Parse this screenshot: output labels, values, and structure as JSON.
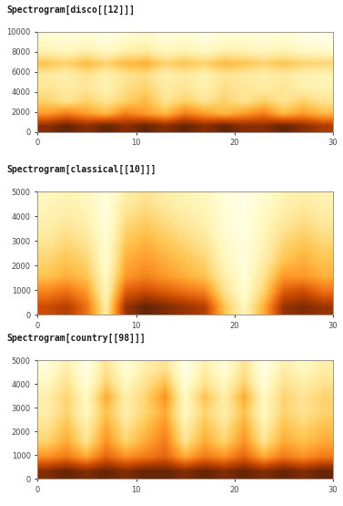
{
  "chart_data": [
    {
      "type": "heatmap",
      "title": "Spectrogram[disco[[12]]]",
      "xlim": [
        0,
        30
      ],
      "ylim": [
        0,
        10000
      ],
      "xticks": [
        0,
        10,
        20,
        30
      ],
      "yticks": [
        0,
        2000,
        4000,
        6000,
        8000,
        10000
      ],
      "cells": [
        [
          0.8,
          0.85,
          0.8,
          0.85,
          0.8,
          0.85,
          0.8,
          0.85,
          0.8,
          0.85,
          0.8,
          0.8,
          0.85,
          0.8,
          0.75
        ],
        [
          0.55,
          0.6,
          0.55,
          0.5,
          0.6,
          0.55,
          0.5,
          0.6,
          0.55,
          0.5,
          0.55,
          0.6,
          0.5,
          0.55,
          0.5
        ],
        [
          0.45,
          0.4,
          0.45,
          0.4,
          0.45,
          0.5,
          0.4,
          0.45,
          0.4,
          0.45,
          0.4,
          0.45,
          0.4,
          0.45,
          0.4
        ],
        [
          0.4,
          0.38,
          0.4,
          0.35,
          0.42,
          0.45,
          0.38,
          0.4,
          0.36,
          0.42,
          0.4,
          0.38,
          0.4,
          0.36,
          0.35
        ],
        [
          0.38,
          0.36,
          0.4,
          0.35,
          0.4,
          0.42,
          0.36,
          0.38,
          0.35,
          0.4,
          0.38,
          0.36,
          0.38,
          0.35,
          0.34
        ],
        [
          0.48,
          0.45,
          0.5,
          0.45,
          0.5,
          0.52,
          0.45,
          0.48,
          0.45,
          0.5,
          0.48,
          0.45,
          0.48,
          0.45,
          0.44
        ],
        [
          0.35,
          0.33,
          0.36,
          0.32,
          0.36,
          0.38,
          0.33,
          0.35,
          0.32,
          0.36,
          0.35,
          0.33,
          0.35,
          0.32,
          0.31
        ],
        [
          0.3,
          0.28,
          0.3,
          0.27,
          0.3,
          0.32,
          0.28,
          0.3,
          0.27,
          0.3,
          0.3,
          0.28,
          0.3,
          0.27,
          0.26
        ]
      ]
    },
    {
      "type": "heatmap",
      "title": "Spectrogram[classical[[10]]]",
      "xlim": [
        0,
        30
      ],
      "ylim": [
        0,
        5000
      ],
      "xticks": [
        0,
        10,
        20,
        30
      ],
      "yticks": [
        0,
        1000,
        2000,
        3000,
        4000,
        5000
      ],
      "cells": [
        [
          0.6,
          0.65,
          0.5,
          0.15,
          0.7,
          0.8,
          0.75,
          0.7,
          0.65,
          0.3,
          0.1,
          0.35,
          0.7,
          0.75,
          0.7
        ],
        [
          0.45,
          0.5,
          0.4,
          0.1,
          0.55,
          0.6,
          0.55,
          0.5,
          0.45,
          0.2,
          0.05,
          0.25,
          0.55,
          0.6,
          0.5
        ],
        [
          0.3,
          0.35,
          0.3,
          0.08,
          0.4,
          0.45,
          0.4,
          0.35,
          0.3,
          0.15,
          0.03,
          0.2,
          0.4,
          0.4,
          0.35
        ],
        [
          0.25,
          0.3,
          0.25,
          0.05,
          0.35,
          0.4,
          0.35,
          0.3,
          0.25,
          0.1,
          0.02,
          0.15,
          0.3,
          0.35,
          0.3
        ],
        [
          0.2,
          0.25,
          0.2,
          0.05,
          0.3,
          0.35,
          0.3,
          0.25,
          0.2,
          0.08,
          0.02,
          0.12,
          0.25,
          0.3,
          0.25
        ],
        [
          0.15,
          0.2,
          0.15,
          0.03,
          0.25,
          0.3,
          0.25,
          0.2,
          0.15,
          0.05,
          0.01,
          0.1,
          0.2,
          0.25,
          0.2
        ],
        [
          0.12,
          0.15,
          0.12,
          0.02,
          0.2,
          0.25,
          0.2,
          0.15,
          0.12,
          0.04,
          0.01,
          0.08,
          0.15,
          0.2,
          0.15
        ],
        [
          0.1,
          0.12,
          0.1,
          0.02,
          0.15,
          0.2,
          0.15,
          0.12,
          0.1,
          0.03,
          0.0,
          0.05,
          0.12,
          0.15,
          0.12
        ]
      ]
    },
    {
      "type": "heatmap",
      "title": "Spectrogram[country[[98]]]",
      "xlim": [
        0,
        30
      ],
      "ylim": [
        0,
        5000
      ],
      "xticks": [
        0,
        10,
        20,
        30
      ],
      "yticks": [
        0,
        1000,
        2000,
        3000,
        4000,
        5000
      ],
      "cells": [
        [
          0.8,
          0.85,
          0.8,
          0.85,
          0.8,
          0.85,
          0.85,
          0.8,
          0.85,
          0.8,
          0.85,
          0.8,
          0.85,
          0.8,
          0.85
        ],
        [
          0.5,
          0.55,
          0.45,
          0.6,
          0.5,
          0.55,
          0.6,
          0.45,
          0.55,
          0.5,
          0.6,
          0.45,
          0.55,
          0.5,
          0.55
        ],
        [
          0.35,
          0.45,
          0.3,
          0.5,
          0.35,
          0.45,
          0.55,
          0.3,
          0.45,
          0.35,
          0.5,
          0.3,
          0.45,
          0.4,
          0.45
        ],
        [
          0.3,
          0.4,
          0.25,
          0.45,
          0.3,
          0.4,
          0.5,
          0.25,
          0.4,
          0.3,
          0.45,
          0.25,
          0.4,
          0.35,
          0.4
        ],
        [
          0.25,
          0.35,
          0.2,
          0.4,
          0.25,
          0.35,
          0.45,
          0.2,
          0.35,
          0.25,
          0.4,
          0.2,
          0.35,
          0.3,
          0.35
        ],
        [
          0.25,
          0.35,
          0.2,
          0.45,
          0.25,
          0.35,
          0.5,
          0.2,
          0.4,
          0.25,
          0.45,
          0.2,
          0.35,
          0.3,
          0.35
        ],
        [
          0.2,
          0.3,
          0.15,
          0.35,
          0.2,
          0.3,
          0.4,
          0.15,
          0.3,
          0.2,
          0.35,
          0.15,
          0.3,
          0.25,
          0.3
        ],
        [
          0.15,
          0.25,
          0.12,
          0.3,
          0.15,
          0.25,
          0.3,
          0.12,
          0.25,
          0.15,
          0.3,
          0.12,
          0.25,
          0.2,
          0.25
        ]
      ]
    }
  ]
}
